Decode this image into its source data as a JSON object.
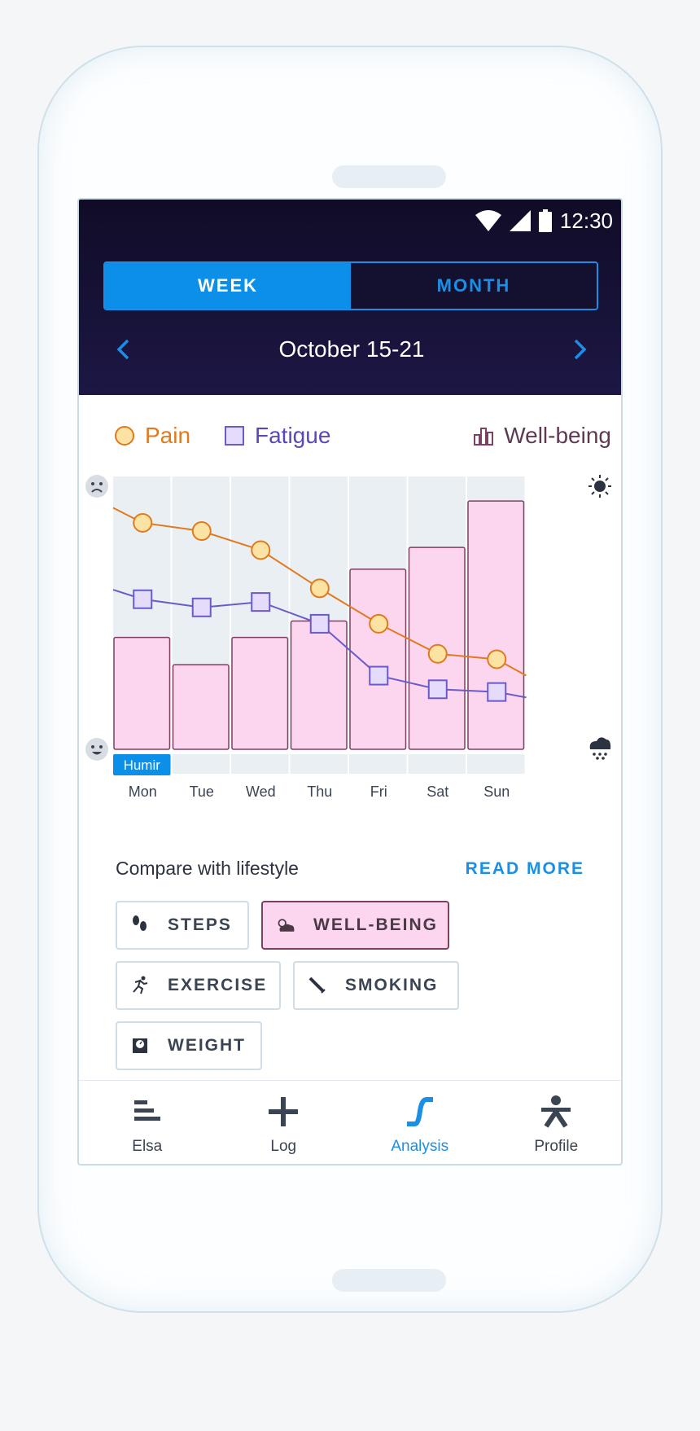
{
  "status": {
    "time": "12:30"
  },
  "period": {
    "week": "WEEK",
    "month": "MONTH",
    "selected": "WEEK"
  },
  "date_range": "October 15-21",
  "legend": {
    "pain": "Pain",
    "fatigue": "Fatigue",
    "wellbeing": "Well-being"
  },
  "chart_data": {
    "type": "bar",
    "categories": [
      "Mon",
      "Tue",
      "Wed",
      "Thu",
      "Fri",
      "Sat",
      "Sun"
    ],
    "series": [
      {
        "name": "Pain",
        "kind": "line",
        "values": [
          8.3,
          8.0,
          7.3,
          5.9,
          4.6,
          3.5,
          3.3
        ]
      },
      {
        "name": "Fatigue",
        "kind": "line",
        "values": [
          5.5,
          5.2,
          5.4,
          4.6,
          2.7,
          2.2,
          2.1
        ]
      },
      {
        "name": "Well-being",
        "kind": "bar",
        "values": [
          4.1,
          3.1,
          4.1,
          4.7,
          6.6,
          7.4,
          9.1
        ]
      }
    ],
    "ylim": [
      0,
      10
    ],
    "marker": {
      "day": "Mon",
      "label": "Humir"
    },
    "colors": {
      "pain": "#e07a1f",
      "pain_fill": "#fde3a3",
      "fatigue": "#6b5bc8",
      "fatigue_fill": "#e5dcfb",
      "bar_fill": "#fcd6ef",
      "bar_stroke": "#7d4063",
      "column_bg": "#e9eff2"
    }
  },
  "compare": {
    "title": "Compare with lifestyle",
    "read_more": "READ MORE"
  },
  "chips": [
    {
      "label": "STEPS",
      "icon": "footsteps-icon",
      "active": false
    },
    {
      "label": "WELL-BEING",
      "icon": "weather-icon",
      "active": true
    },
    {
      "label": "EXERCISE",
      "icon": "running-icon",
      "active": false
    },
    {
      "label": "SMOKING",
      "icon": "cigarette-icon",
      "active": false
    },
    {
      "label": "WEIGHT",
      "icon": "scale-icon",
      "active": false
    }
  ],
  "tabs": [
    {
      "label": "Elsa",
      "icon": "elsa-icon",
      "active": false
    },
    {
      "label": "Log",
      "icon": "plus-icon",
      "active": false
    },
    {
      "label": "Analysis",
      "icon": "analysis-icon",
      "active": true
    },
    {
      "label": "Profile",
      "icon": "person-icon",
      "active": false
    }
  ]
}
